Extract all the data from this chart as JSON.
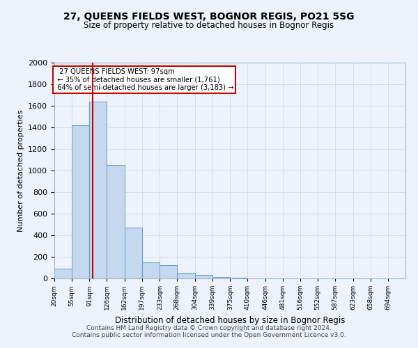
{
  "title1": "27, QUEENS FIELDS WEST, BOGNOR REGIS, PO21 5SG",
  "title2": "Size of property relative to detached houses in Bognor Regis",
  "xlabel": "Distribution of detached houses by size in Bognor Regis",
  "ylabel": "Number of detached properties",
  "bar_color": "#c5d8ee",
  "bar_edge_color": "#5b9bd5",
  "annotation_line_color": "#cc0000",
  "annotation_box_color": "#cc0000",
  "annotation_text": "  27 QUEENS FIELDS WEST: 97sqm  \n ← 35% of detached houses are smaller (1,761)\n 64% of semi-detached houses are larger (3,183) →",
  "property_size": 97,
  "bin_edges": [
    20,
    55,
    91,
    126,
    162,
    197,
    233,
    268,
    304,
    339,
    375,
    410,
    446,
    481,
    516,
    552,
    587,
    623,
    658,
    694,
    729
  ],
  "bar_heights": [
    90,
    1420,
    1640,
    1050,
    470,
    150,
    120,
    50,
    30,
    10,
    5,
    0,
    0,
    0,
    0,
    0,
    0,
    0,
    0,
    0
  ],
  "ylim": [
    0,
    2000
  ],
  "yticks": [
    0,
    200,
    400,
    600,
    800,
    1000,
    1200,
    1400,
    1600,
    1800,
    2000
  ],
  "footer1": "Contains HM Land Registry data © Crown copyright and database right 2024.",
  "footer2": "Contains public sector information licensed under the Open Government Licence v3.0.",
  "bg_color": "#eef2fb"
}
